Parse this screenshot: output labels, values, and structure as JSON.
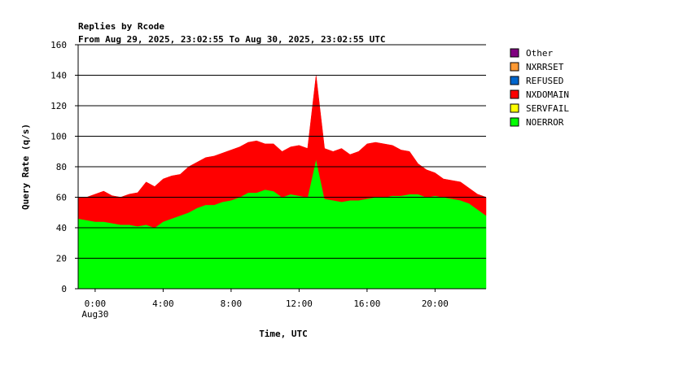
{
  "chart_data": {
    "type": "area",
    "stacked": true,
    "title": "Replies by Rcode",
    "subtitle": "From Aug 29, 2025, 23:02:55 To Aug 30, 2025, 23:02:55 UTC",
    "xlabel": "Time, UTC",
    "ylabel": "Query Rate (q/s)",
    "ylim": [
      0,
      160
    ],
    "yticks": [
      0,
      20,
      40,
      60,
      80,
      100,
      120,
      140,
      160
    ],
    "xlim_hours": [
      -1,
      23
    ],
    "xticks": [
      {
        "hour": 0,
        "label": "0:00",
        "sublabel": "Aug30"
      },
      {
        "hour": 4,
        "label": "4:00",
        "sublabel": ""
      },
      {
        "hour": 8,
        "label": "8:00",
        "sublabel": ""
      },
      {
        "hour": 12,
        "label": "12:00",
        "sublabel": ""
      },
      {
        "hour": 16,
        "label": "16:00",
        "sublabel": ""
      },
      {
        "hour": 20,
        "label": "20:00",
        "sublabel": ""
      }
    ],
    "grid": "horizontal",
    "legend_position": "right",
    "legend": [
      {
        "name": "Other",
        "color": "#800080"
      },
      {
        "name": "NXRRSET",
        "color": "#ff9933"
      },
      {
        "name": "REFUSED",
        "color": "#0066cc"
      },
      {
        "name": "NXDOMAIN",
        "color": "#ff0000"
      },
      {
        "name": "SERVFAIL",
        "color": "#ffff00"
      },
      {
        "name": "NOERROR",
        "color": "#00ff00"
      }
    ],
    "x_hours": [
      -1,
      -0.5,
      0,
      0.5,
      1,
      1.5,
      2,
      2.5,
      3,
      3.5,
      4,
      4.5,
      5,
      5.5,
      6,
      6.5,
      7,
      7.5,
      8,
      8.5,
      9,
      9.5,
      10,
      10.5,
      11,
      11.5,
      12,
      12.5,
      13,
      13.5,
      14,
      14.5,
      15,
      15.5,
      16,
      16.5,
      17,
      17.5,
      18,
      18.5,
      19,
      19.5,
      20,
      20.5,
      21,
      21.5,
      22,
      22.5,
      23
    ],
    "series": [
      {
        "name": "NOERROR",
        "values": [
          46,
          45,
          44,
          44,
          43,
          42,
          42,
          41,
          42,
          40,
          44,
          46,
          48,
          50,
          53,
          55,
          55,
          57,
          58,
          60,
          63,
          63,
          65,
          64,
          60,
          62,
          61,
          60,
          85,
          59,
          58,
          57,
          58,
          58,
          59,
          60,
          60,
          61,
          61,
          62,
          62,
          60,
          61,
          60,
          59,
          58,
          56,
          52,
          48
        ]
      },
      {
        "name": "NXDOMAIN",
        "values": [
          14,
          15,
          18,
          20,
          18,
          18,
          20,
          22,
          28,
          27,
          28,
          28,
          27,
          30,
          30,
          31,
          32,
          32,
          33,
          33,
          33,
          34,
          30,
          31,
          30,
          31,
          33,
          32,
          55,
          33,
          32,
          35,
          30,
          32,
          36,
          36,
          35,
          33,
          30,
          28,
          20,
          18,
          15,
          12,
          12,
          12,
          10,
          10,
          12
        ]
      }
    ]
  }
}
